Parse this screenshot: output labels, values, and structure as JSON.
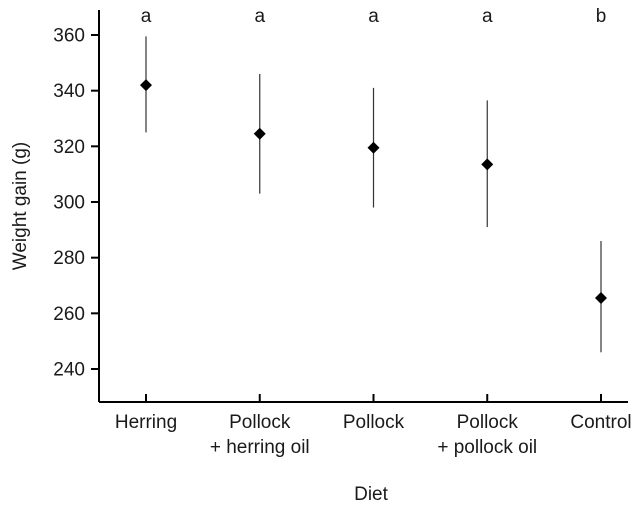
{
  "chart_data": {
    "type": "scatter",
    "subtype": "point-with-error-bars",
    "title": "",
    "xlabel": "Diet",
    "ylabel": "Weight gain (g)",
    "categories": [
      [
        "Herring"
      ],
      [
        "Pollock",
        "+ herring oil"
      ],
      [
        "Pollock"
      ],
      [
        "Pollock",
        "+ pollock oil"
      ],
      [
        "Control"
      ]
    ],
    "values": [
      342,
      324.5,
      319.5,
      313.5,
      265.5
    ],
    "error_low": [
      325,
      303,
      298,
      291,
      246
    ],
    "error_high": [
      359.5,
      346,
      341,
      336.5,
      286
    ],
    "significance_labels": [
      "a",
      "a",
      "a",
      "a",
      "b"
    ],
    "ylim": [
      228,
      368
    ],
    "yticks": [
      240,
      260,
      280,
      300,
      320,
      340,
      360
    ],
    "grid": false,
    "legend": "none",
    "marker": "diamond",
    "colors": {
      "marker": "#000000",
      "error_bar": "#333333",
      "axis": "#000000"
    }
  }
}
